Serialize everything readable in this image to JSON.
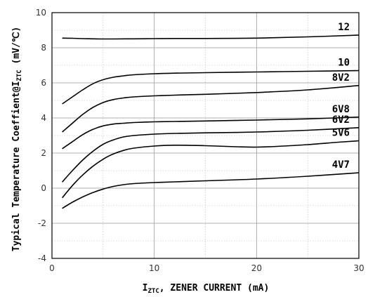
{
  "chart_data": {
    "type": "line",
    "title": "",
    "xlabel": {
      "main": "I",
      "sub": "ZTC",
      "rest": ", ZENER CURRENT (mA)"
    },
    "ylabel": {
      "main": "Typical Temperature Coeffient@I",
      "sub": "ZTC",
      "rest": " (mV/℃)"
    },
    "xlim": [
      0,
      30
    ],
    "ylim": [
      -4,
      10
    ],
    "xticks": [
      "0",
      "10",
      "20",
      "30"
    ],
    "yticks": [
      "10",
      "8",
      "6",
      "4",
      "2",
      "0",
      "-2",
      "-4"
    ],
    "grid": {
      "major": true,
      "minor": true
    },
    "colors": {
      "series": "#000000",
      "major_grid": "#999999",
      "minor_grid": "#bbbbbb",
      "frame": "#000000"
    },
    "series": [
      {
        "name": "12",
        "x": [
          1,
          2,
          3,
          4,
          5,
          6,
          8,
          10,
          12,
          15,
          20,
          25,
          30
        ],
        "y": [
          8.55,
          8.54,
          8.52,
          8.51,
          8.5,
          8.5,
          8.51,
          8.52,
          8.53,
          8.53,
          8.55,
          8.62,
          8.72
        ]
      },
      {
        "name": "10",
        "x": [
          1,
          2,
          3,
          4,
          5,
          6,
          7,
          8,
          10,
          12,
          15,
          20,
          25,
          30
        ],
        "y": [
          4.8,
          5.2,
          5.6,
          5.95,
          6.18,
          6.32,
          6.4,
          6.46,
          6.52,
          6.55,
          6.58,
          6.62,
          6.66,
          6.7
        ]
      },
      {
        "name": "8V2",
        "x": [
          1,
          2,
          3,
          4,
          5,
          6,
          7,
          8,
          10,
          12,
          15,
          20,
          25,
          30
        ],
        "y": [
          3.2,
          3.7,
          4.2,
          4.6,
          4.88,
          5.05,
          5.14,
          5.2,
          5.26,
          5.3,
          5.35,
          5.45,
          5.6,
          5.85
        ]
      },
      {
        "name": "6V8",
        "x": [
          1,
          2,
          3,
          4,
          5,
          6,
          7,
          8,
          10,
          12,
          15,
          20,
          25,
          30
        ],
        "y": [
          2.25,
          2.65,
          3.05,
          3.35,
          3.55,
          3.65,
          3.7,
          3.74,
          3.78,
          3.8,
          3.83,
          3.88,
          3.95,
          4.05
        ]
      },
      {
        "name": "6V2",
        "x": [
          1,
          2,
          3,
          4,
          5,
          6,
          7,
          8,
          10,
          12,
          15,
          20,
          25,
          30
        ],
        "y": [
          0.35,
          1.0,
          1.6,
          2.1,
          2.5,
          2.75,
          2.92,
          3.0,
          3.08,
          3.12,
          3.15,
          3.2,
          3.3,
          3.45
        ]
      },
      {
        "name": "5V6",
        "x": [
          1,
          2,
          3,
          4,
          5,
          6,
          7,
          8,
          10,
          12,
          15,
          18,
          20,
          22,
          25,
          28,
          30
        ],
        "y": [
          -0.55,
          0.15,
          0.75,
          1.25,
          1.65,
          1.95,
          2.15,
          2.28,
          2.4,
          2.45,
          2.42,
          2.36,
          2.34,
          2.38,
          2.48,
          2.62,
          2.7
        ]
      },
      {
        "name": "4V7",
        "x": [
          1,
          2,
          3,
          4,
          5,
          6,
          7,
          8,
          10,
          12,
          15,
          20,
          25,
          30
        ],
        "y": [
          -1.15,
          -0.8,
          -0.5,
          -0.25,
          -0.05,
          0.1,
          0.2,
          0.26,
          0.32,
          0.36,
          0.42,
          0.52,
          0.68,
          0.88
        ]
      }
    ]
  }
}
